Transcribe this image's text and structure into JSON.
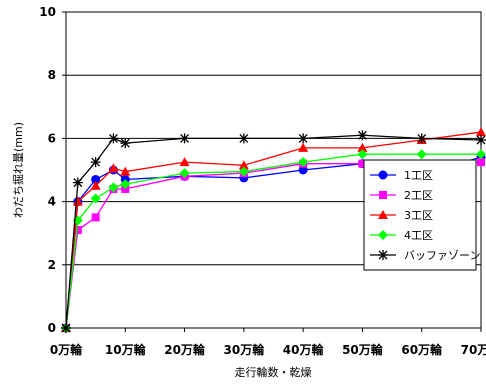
{
  "chart_data": {
    "type": "line",
    "xlabel": "走行輪数・乾燥",
    "ylabel": "わだち掘れ量(mm)",
    "ylim": [
      0,
      10
    ],
    "yticks": [
      0,
      2,
      4,
      6,
      8,
      10
    ],
    "xlim": [
      0,
      70
    ],
    "xticks": [
      0,
      10,
      20,
      30,
      40,
      50,
      60,
      70
    ],
    "xtick_labels": [
      "0万輪",
      "10万輪",
      "20万輪",
      "30万輪",
      "40万輪",
      "50万輪",
      "60万輪",
      "70万輪"
    ],
    "grid": "horizontal",
    "legend_position": "right",
    "series": [
      {
        "name": "1工区",
        "color": "#0000FF",
        "marker": "circle",
        "x": [
          0,
          2,
          5,
          8,
          10,
          20,
          30,
          40,
          50,
          60,
          70
        ],
        "y": [
          0,
          4.0,
          4.7,
          5.0,
          4.7,
          4.8,
          4.75,
          5.0,
          5.2,
          4.9,
          5.4
        ]
      },
      {
        "name": "2工区",
        "color": "#FF00FF",
        "marker": "square",
        "x": [
          0,
          2,
          5,
          8,
          10,
          20,
          30,
          40,
          50,
          60,
          70
        ],
        "y": [
          0,
          3.1,
          3.5,
          4.4,
          4.4,
          4.8,
          4.9,
          5.2,
          5.2,
          5.2,
          5.25
        ]
      },
      {
        "name": "3工区",
        "color": "#FF0000",
        "marker": "triangle",
        "x": [
          0,
          2,
          5,
          8,
          10,
          20,
          30,
          40,
          50,
          60,
          70
        ],
        "y": [
          0,
          4.0,
          4.5,
          5.05,
          4.95,
          5.25,
          5.15,
          5.7,
          5.7,
          5.95,
          6.2
        ]
      },
      {
        "name": "4工区",
        "color": "#00FF00",
        "marker": "diamond",
        "x": [
          0,
          2,
          5,
          8,
          10,
          20,
          30,
          40,
          50,
          60,
          70
        ],
        "y": [
          0,
          3.4,
          4.1,
          4.45,
          4.55,
          4.9,
          4.95,
          5.25,
          5.5,
          5.5,
          5.5
        ]
      },
      {
        "name": "バッファゾーン",
        "color": "#000000",
        "marker": "star",
        "x": [
          0,
          2,
          5,
          8,
          10,
          20,
          30,
          40,
          50,
          60,
          70
        ],
        "y": [
          0,
          4.6,
          5.25,
          6.0,
          5.85,
          6.0,
          6.0,
          6.0,
          6.1,
          6.0,
          5.95
        ]
      }
    ]
  }
}
